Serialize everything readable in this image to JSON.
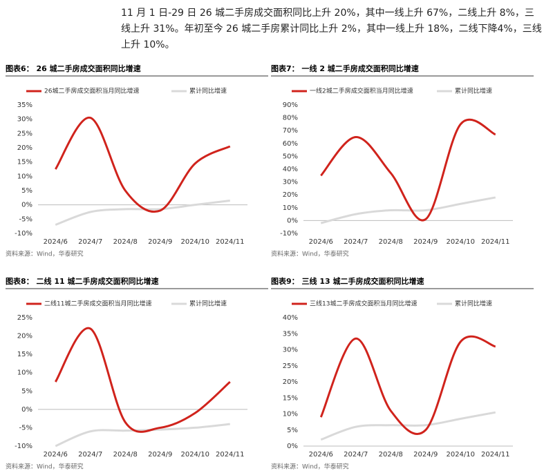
{
  "paragraph": "11 月 1 日-29 日 26 城二手房成交面积同比上升 20%，其中一线上升 67%，二线上升 8%，三线上升 31%。年初至今 26 城二手房累计同比上升 2%，其中一线上升 18%，二线下降4%，三线上升 10%。",
  "chart_data": [
    {
      "type": "line",
      "title": "图表6： 26 城二手房成交面积同比增速",
      "source": "资料来源：Wind，华泰研究",
      "categories": [
        "2024/6",
        "2024/7",
        "2024/8",
        "2024/9",
        "2024/10",
        "2024/11"
      ],
      "series": [
        {
          "name": "26城二手房成交面积当月同比增速",
          "color": "#d0231c",
          "values": [
            12.5,
            30.5,
            5,
            -2,
            14.5,
            20.5
          ]
        },
        {
          "name": "累计同比增速",
          "color": "#d9d9d9",
          "values": [
            -7,
            -2.5,
            -1.5,
            -1.5,
            0,
            1.5
          ]
        }
      ],
      "ylim": [
        -10,
        35
      ],
      "yticks": [
        {
          "value": -10,
          "label": "-10%"
        },
        {
          "value": -5,
          "label": "-5%"
        },
        {
          "value": 0,
          "label": "0%"
        },
        {
          "value": 5,
          "label": "5%"
        },
        {
          "value": 10,
          "label": "10%"
        },
        {
          "value": 15,
          "label": "15%"
        },
        {
          "value": 20,
          "label": "20%"
        },
        {
          "value": 25,
          "label": "25%"
        },
        {
          "value": 30,
          "label": "30%"
        },
        {
          "value": 35,
          "label": "35%"
        }
      ]
    },
    {
      "type": "line",
      "title": "图表7： 一线 2 城二手房成交面积同比增速",
      "source": "资料来源：Wind，华泰研究",
      "categories": [
        "2024/6",
        "2024/7",
        "2024/8",
        "2024/9",
        "2024/10",
        "2024/11"
      ],
      "series": [
        {
          "name": "一线2城二手房成交面积当月同比增速",
          "color": "#d0231c",
          "values": [
            35,
            65,
            37,
            1,
            75,
            67
          ]
        },
        {
          "name": "累计同比增速",
          "color": "#d9d9d9",
          "values": [
            -2,
            5,
            8,
            8,
            13,
            18
          ]
        }
      ],
      "ylim": [
        -10,
        90
      ],
      "yticks": [
        {
          "value": -10,
          "label": "-10%"
        },
        {
          "value": 0,
          "label": "0%"
        },
        {
          "value": 10,
          "label": "10%"
        },
        {
          "value": 20,
          "label": "20%"
        },
        {
          "value": 30,
          "label": "30%"
        },
        {
          "value": 40,
          "label": "40%"
        },
        {
          "value": 50,
          "label": "50%"
        },
        {
          "value": 60,
          "label": "60%"
        },
        {
          "value": 70,
          "label": "70%"
        },
        {
          "value": 80,
          "label": "80%"
        },
        {
          "value": 90,
          "label": "90%"
        }
      ]
    },
    {
      "type": "line",
      "title": "图表8： 二线 11 城二手房成交面积同比增速",
      "source": "资料来源：Wind，华泰研究",
      "categories": [
        "2024/6",
        "2024/7",
        "2024/8",
        "2024/9",
        "2024/10",
        "2024/11"
      ],
      "series": [
        {
          "name": "二线11城二手房成交面积当月同比增速",
          "color": "#d0231c",
          "values": [
            7.5,
            22,
            -3.5,
            -5,
            -1,
            7.5
          ]
        },
        {
          "name": "累计同比增速",
          "color": "#d9d9d9",
          "values": [
            -10,
            -6,
            -5.8,
            -5.5,
            -5,
            -4
          ]
        }
      ],
      "ylim": [
        -10,
        25
      ],
      "yticks": [
        {
          "value": -10,
          "label": "-10%"
        },
        {
          "value": -5,
          "label": "-5%"
        },
        {
          "value": 0,
          "label": "0%"
        },
        {
          "value": 5,
          "label": "5%"
        },
        {
          "value": 10,
          "label": "10%"
        },
        {
          "value": 15,
          "label": "15%"
        },
        {
          "value": 20,
          "label": "20%"
        },
        {
          "value": 25,
          "label": "25%"
        }
      ]
    },
    {
      "type": "line",
      "title": "图表9： 三线 13 城二手房成交面积同比增速",
      "source": "资料来源：Wind，华泰研究",
      "categories": [
        "2024/6",
        "2024/7",
        "2024/8",
        "2024/9",
        "2024/10",
        "2024/11"
      ],
      "series": [
        {
          "name": "三线13城二手房成交面积当月同比增速",
          "color": "#d0231c",
          "values": [
            9,
            33.5,
            11,
            5,
            32.5,
            31
          ]
        },
        {
          "name": "累计同比增速",
          "color": "#d9d9d9",
          "values": [
            2,
            6,
            6.5,
            6.5,
            8.5,
            10.5
          ]
        }
      ],
      "ylim": [
        0,
        40
      ],
      "yticks": [
        {
          "value": 0,
          "label": "0%"
        },
        {
          "value": 5,
          "label": "5%"
        },
        {
          "value": 10,
          "label": "10%"
        },
        {
          "value": 15,
          "label": "15%"
        },
        {
          "value": 20,
          "label": "20%"
        },
        {
          "value": 25,
          "label": "25%"
        },
        {
          "value": 30,
          "label": "30%"
        },
        {
          "value": 35,
          "label": "35%"
        },
        {
          "value": 40,
          "label": "40%"
        }
      ]
    }
  ]
}
